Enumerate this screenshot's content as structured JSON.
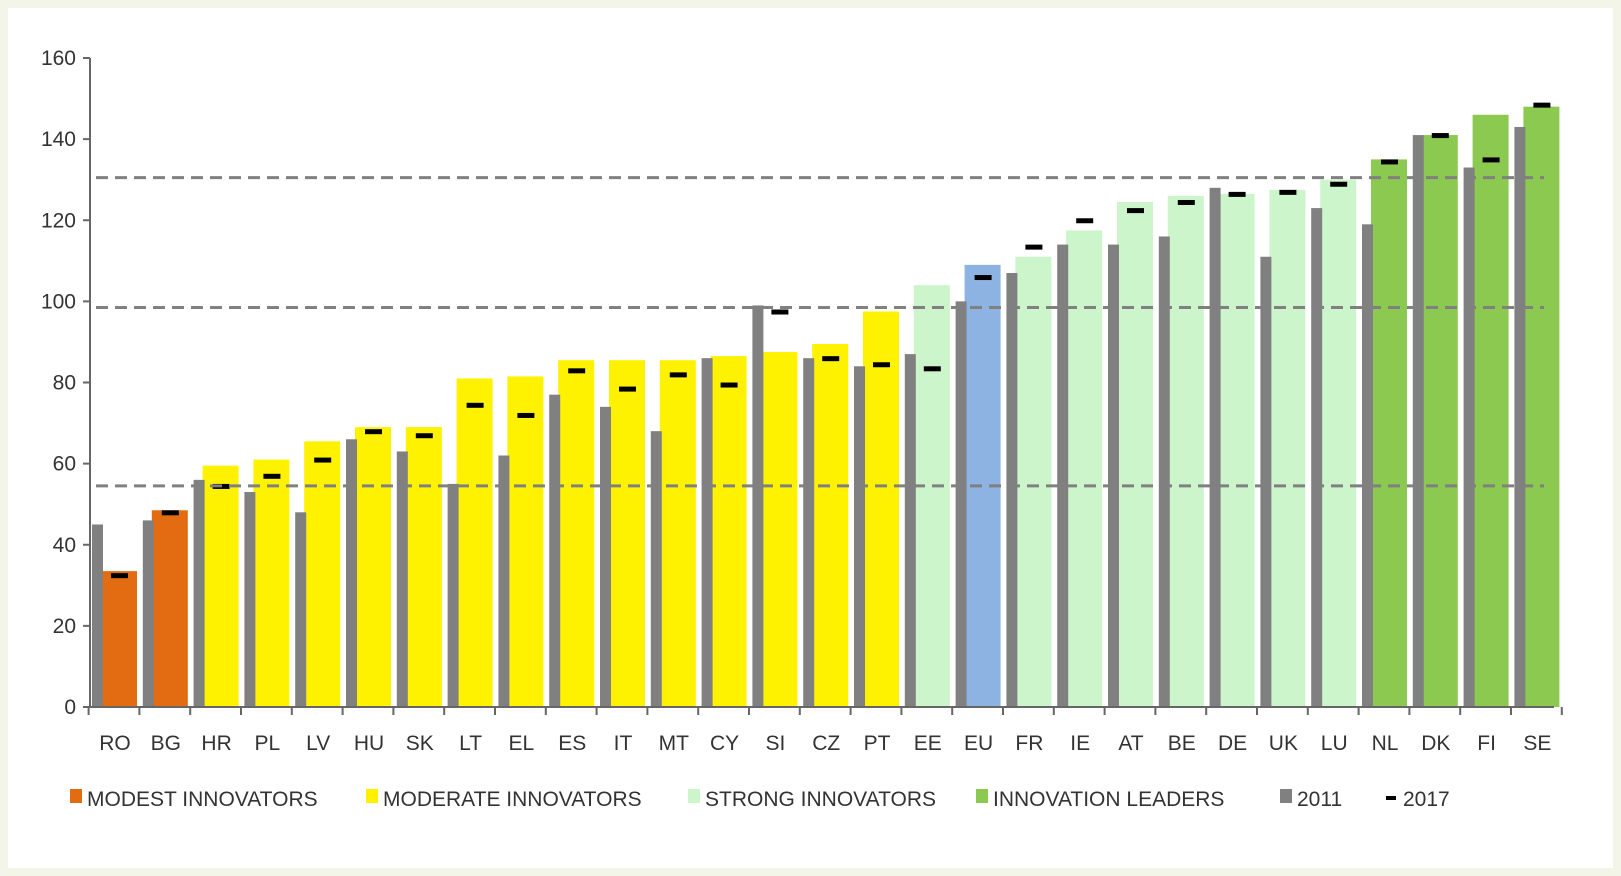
{
  "colors": {
    "modest": "#e36c12",
    "moderate": "#fff200",
    "strong": "#ccf5cc",
    "leaders": "#8cc950",
    "eu": "#8db3e2",
    "y2011": "#808080",
    "y2017": "#000000",
    "threshold": "#808080",
    "axis": "#666666"
  },
  "chart_data": {
    "type": "bar",
    "title": "",
    "xlabel": "",
    "ylabel": "",
    "ylim": [
      0,
      160
    ],
    "yticks": [
      0,
      20,
      40,
      60,
      80,
      100,
      120,
      140,
      160
    ],
    "grid": false,
    "legend_position": "bottom",
    "thresholds": [
      54.5,
      98.5,
      130.5
    ],
    "categories": [
      "RO",
      "BG",
      "HR",
      "PL",
      "LV",
      "HU",
      "SK",
      "LT",
      "EL",
      "ES",
      "IT",
      "MT",
      "CY",
      "SI",
      "CZ",
      "PT",
      "EE",
      "EU",
      "FR",
      "IE",
      "AT",
      "BE",
      "DE",
      "UK",
      "LU",
      "NL",
      "DK",
      "FI",
      "SE"
    ],
    "groups": [
      "modest",
      "modest",
      "moderate",
      "moderate",
      "moderate",
      "moderate",
      "moderate",
      "moderate",
      "moderate",
      "moderate",
      "moderate",
      "moderate",
      "moderate",
      "moderate",
      "moderate",
      "moderate",
      "strong",
      "eu",
      "strong",
      "strong",
      "strong",
      "strong",
      "strong",
      "strong",
      "strong",
      "leaders",
      "leaders",
      "leaders",
      "leaders"
    ],
    "series": [
      {
        "name": "2011",
        "values": [
          45,
          46,
          56,
          53,
          48,
          66,
          63,
          55,
          62,
          77,
          74,
          68,
          86,
          99,
          86,
          84,
          87,
          100,
          107,
          114,
          114,
          116,
          128,
          111,
          123,
          119,
          141,
          133,
          143
        ]
      },
      {
        "name": "2017",
        "values": [
          32.5,
          48,
          54.5,
          57,
          61,
          68,
          67,
          74.5,
          72,
          83,
          78.5,
          82,
          79.5,
          97.5,
          86,
          84.5,
          83.5,
          106,
          113.5,
          120,
          122.5,
          124.5,
          126.5,
          127,
          129,
          134.5,
          141,
          135,
          148.5
        ]
      },
      {
        "values": [
          33.5,
          48.5,
          59.5,
          61,
          65.5,
          69,
          69,
          81,
          81.5,
          85.5,
          85.5,
          85.5,
          86.5,
          87.5,
          89.5,
          97.5,
          104,
          109,
          111,
          117.5,
          124.5,
          126,
          126.5,
          127.5,
          130,
          135,
          141,
          146,
          148
        ]
      }
    ],
    "legend": [
      {
        "key": "modest",
        "label": "MODEST INNOVATORS"
      },
      {
        "key": "moderate",
        "label": "MODERATE INNOVATORS"
      },
      {
        "key": "strong",
        "label": "STRONG INNOVATORS"
      },
      {
        "key": "leaders",
        "label": "INNOVATION LEADERS"
      },
      {
        "key": "y2011",
        "label": "2011"
      },
      {
        "key": "y2017",
        "label": "2017"
      }
    ]
  }
}
